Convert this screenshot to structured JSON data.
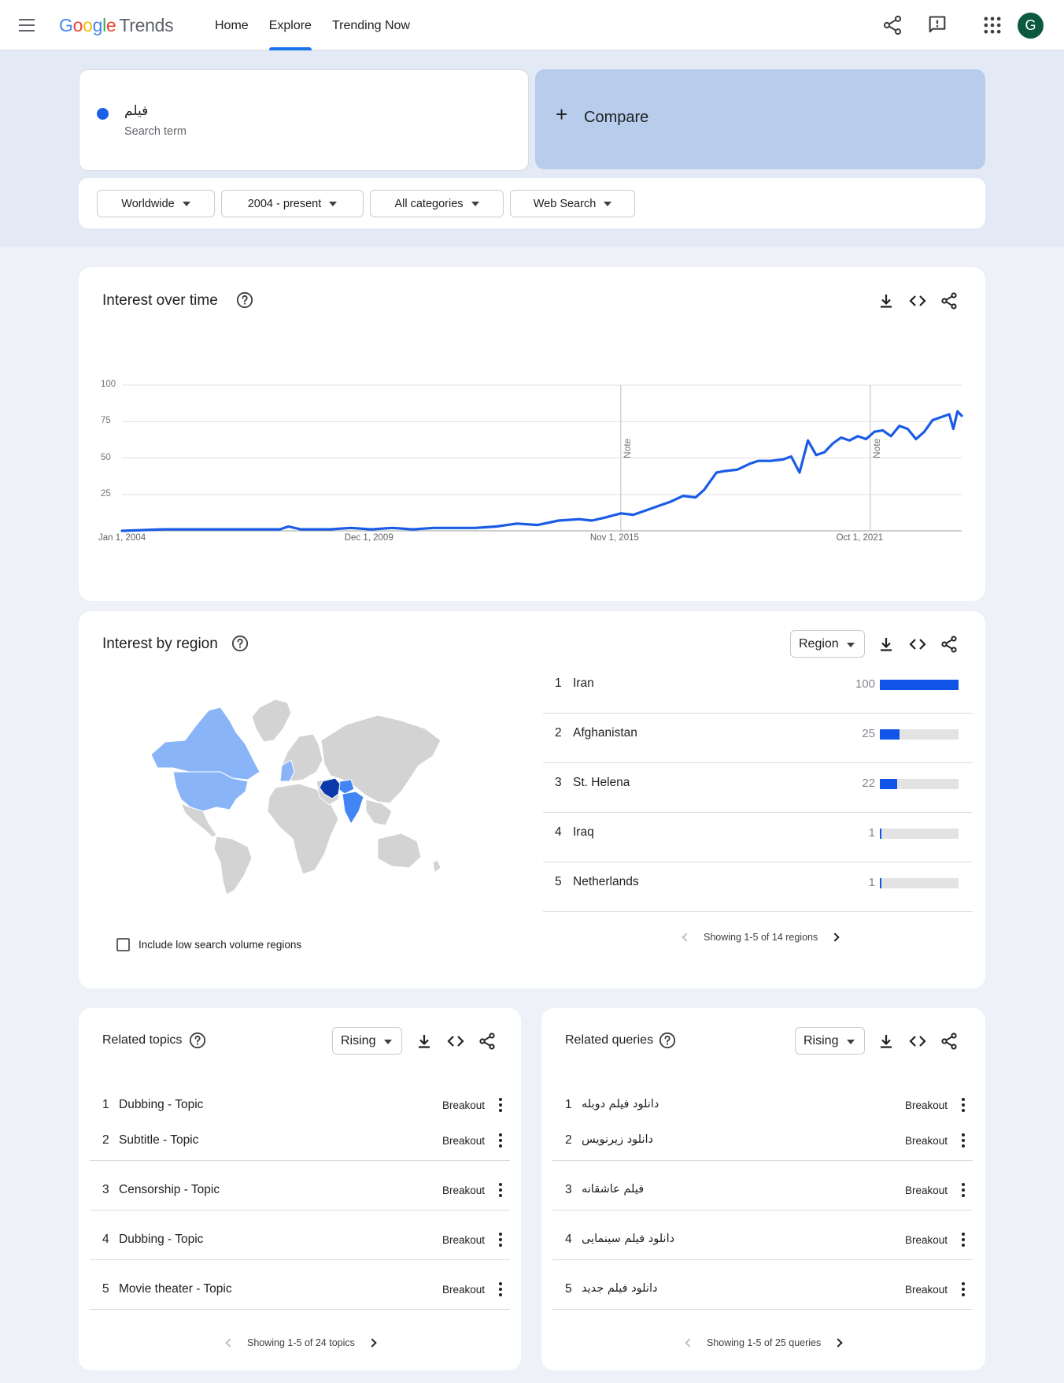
{
  "header": {
    "logo": {
      "brand": "Google",
      "product": "Trends"
    },
    "nav": [
      {
        "label": "Home"
      },
      {
        "label": "Explore",
        "active": true
      },
      {
        "label": "Trending Now"
      }
    ],
    "icons": [
      "share-icon",
      "feedback-icon",
      "apps-icon"
    ],
    "avatar_letter": "G"
  },
  "search": {
    "term": "فیلم",
    "term_type": "Search term",
    "term_color": "#1a60e8",
    "compare_label": "Compare"
  },
  "filters": {
    "location": "Worldwide",
    "time": "2004 - present",
    "category": "All categories",
    "property": "Web Search"
  },
  "interest_over_time": {
    "title": "Interest over time",
    "chart_data": {
      "type": "line",
      "title": "Interest over time",
      "y_ticks": [
        "100",
        "75",
        "50",
        "25"
      ],
      "ylim": [
        0,
        100
      ],
      "x_tick_labels": [
        "Jan 1, 2004",
        "Dec 1, 2009",
        "Nov 1, 2015",
        "Oct 1, 2021"
      ],
      "x_tick_years": [
        2004.0,
        2009.92,
        2015.83,
        2021.75
      ],
      "xlim": [
        2004.0,
        2024.2
      ],
      "notes": [
        {
          "x": 2016.0,
          "label": "Note"
        },
        {
          "x": 2022.0,
          "label": "Note"
        }
      ],
      "series": [
        {
          "color": "#1a5ce6",
          "points": [
            [
              2004.0,
              0
            ],
            [
              2005.0,
              1
            ],
            [
              2006.0,
              1
            ],
            [
              2007.0,
              1
            ],
            [
              2007.8,
              1
            ],
            [
              2008.0,
              3
            ],
            [
              2008.3,
              1
            ],
            [
              2009.0,
              1
            ],
            [
              2009.5,
              2
            ],
            [
              2010.0,
              1
            ],
            [
              2010.5,
              2
            ],
            [
              2011.0,
              1
            ],
            [
              2011.5,
              2
            ],
            [
              2012.0,
              2
            ],
            [
              2012.5,
              2
            ],
            [
              2013.0,
              3
            ],
            [
              2013.5,
              5
            ],
            [
              2014.0,
              4
            ],
            [
              2014.5,
              7
            ],
            [
              2015.0,
              8
            ],
            [
              2015.3,
              7
            ],
            [
              2015.6,
              9
            ],
            [
              2016.0,
              12
            ],
            [
              2016.3,
              11
            ],
            [
              2016.6,
              14
            ],
            [
              2016.9,
              17
            ],
            [
              2017.2,
              20
            ],
            [
              2017.5,
              24
            ],
            [
              2017.8,
              23
            ],
            [
              2018.0,
              28
            ],
            [
              2018.3,
              40
            ],
            [
              2018.5,
              41
            ],
            [
              2018.8,
              42
            ],
            [
              2019.1,
              46
            ],
            [
              2019.3,
              48
            ],
            [
              2019.6,
              48
            ],
            [
              2019.9,
              49
            ],
            [
              2020.1,
              51
            ],
            [
              2020.3,
              40
            ],
            [
              2020.5,
              62
            ],
            [
              2020.7,
              52
            ],
            [
              2020.9,
              54
            ],
            [
              2021.1,
              60
            ],
            [
              2021.3,
              64
            ],
            [
              2021.5,
              62
            ],
            [
              2021.7,
              65
            ],
            [
              2021.9,
              63
            ],
            [
              2022.1,
              68
            ],
            [
              2022.3,
              69
            ],
            [
              2022.5,
              65
            ],
            [
              2022.7,
              72
            ],
            [
              2022.9,
              70
            ],
            [
              2023.1,
              63
            ],
            [
              2023.3,
              68
            ],
            [
              2023.5,
              76
            ],
            [
              2023.7,
              78
            ],
            [
              2023.9,
              80
            ],
            [
              2024.0,
              70
            ],
            [
              2024.1,
              82
            ],
            [
              2024.2,
              79
            ]
          ]
        }
      ]
    }
  },
  "interest_by_region": {
    "title": "Interest by region",
    "resolution": "Region",
    "map_colors": {
      "max": "#0b3aab",
      "high": "#4285f4",
      "low": "#8ab4f8",
      "none": "#d3d3d3"
    },
    "rows": [
      {
        "rank": "1",
        "name": "Iran",
        "value": 100
      },
      {
        "rank": "2",
        "name": "Afghanistan",
        "value": 25
      },
      {
        "rank": "3",
        "name": "St. Helena",
        "value": 22
      },
      {
        "rank": "4",
        "name": "Iraq",
        "value": 1
      },
      {
        "rank": "5",
        "name": "Netherlands",
        "value": 1
      }
    ],
    "pager": "Showing 1-5 of 14 regions",
    "low_volume_label": "Include low search volume regions"
  },
  "related_topics": {
    "title": "Related topics",
    "filter": "Rising",
    "rows": [
      {
        "rank": "1",
        "name": "Dubbing - Topic",
        "value": "Breakout"
      },
      {
        "rank": "2",
        "name": "Subtitle - Topic",
        "value": "Breakout"
      },
      {
        "rank": "3",
        "name": "Censorship - Topic",
        "value": "Breakout"
      },
      {
        "rank": "4",
        "name": "Dubbing - Topic",
        "value": "Breakout"
      },
      {
        "rank": "5",
        "name": "Movie theater - Topic",
        "value": "Breakout"
      }
    ],
    "pager": "Showing 1-5 of 24 topics"
  },
  "related_queries": {
    "title": "Related queries",
    "filter": "Rising",
    "rows": [
      {
        "rank": "1",
        "name": "دانلود فیلم دوبله",
        "value": "Breakout"
      },
      {
        "rank": "2",
        "name": "دانلود زیرنویس",
        "value": "Breakout"
      },
      {
        "rank": "3",
        "name": "فیلم عاشقانه",
        "value": "Breakout"
      },
      {
        "rank": "4",
        "name": "دانلود فیلم سینمایی",
        "value": "Breakout"
      },
      {
        "rank": "5",
        "name": "دانلود فیلم جدید",
        "value": "Breakout"
      }
    ],
    "pager": "Showing 1-5 of 25 queries"
  }
}
